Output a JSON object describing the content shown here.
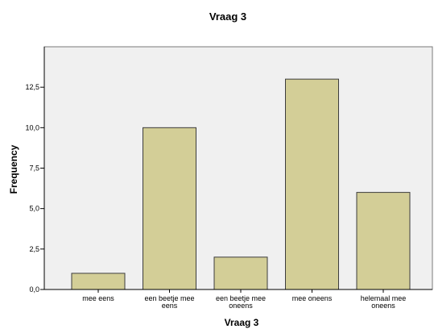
{
  "chart_data": {
    "type": "bar",
    "title": "Vraag 3",
    "xlabel": "Vraag 3",
    "ylabel": "Frequency",
    "categories": [
      "mee eens",
      "een beetje mee eens",
      "een beetje mee oneens",
      "mee oneens",
      "helemaal mee oneens"
    ],
    "category_lines": [
      [
        "mee eens"
      ],
      [
        "een beetje mee",
        "eens"
      ],
      [
        "een beetje mee",
        "oneens"
      ],
      [
        "mee oneens"
      ],
      [
        "helemaal mee",
        "oneens"
      ]
    ],
    "values": [
      1,
      10,
      2,
      13,
      6
    ],
    "ylim": [
      0,
      15
    ],
    "yticks": [
      0,
      2.5,
      5,
      7.5,
      10,
      12.5
    ],
    "ytick_labels": [
      "0,0",
      "2,5",
      "5,0",
      "7,5",
      "10,0",
      "12,5"
    ],
    "grid": false,
    "colors": {
      "plot_background": "#f0f0f0",
      "bar_fill": "#d3ce97",
      "bar_stroke": "#3c3c3c",
      "axis": "#000000"
    }
  }
}
